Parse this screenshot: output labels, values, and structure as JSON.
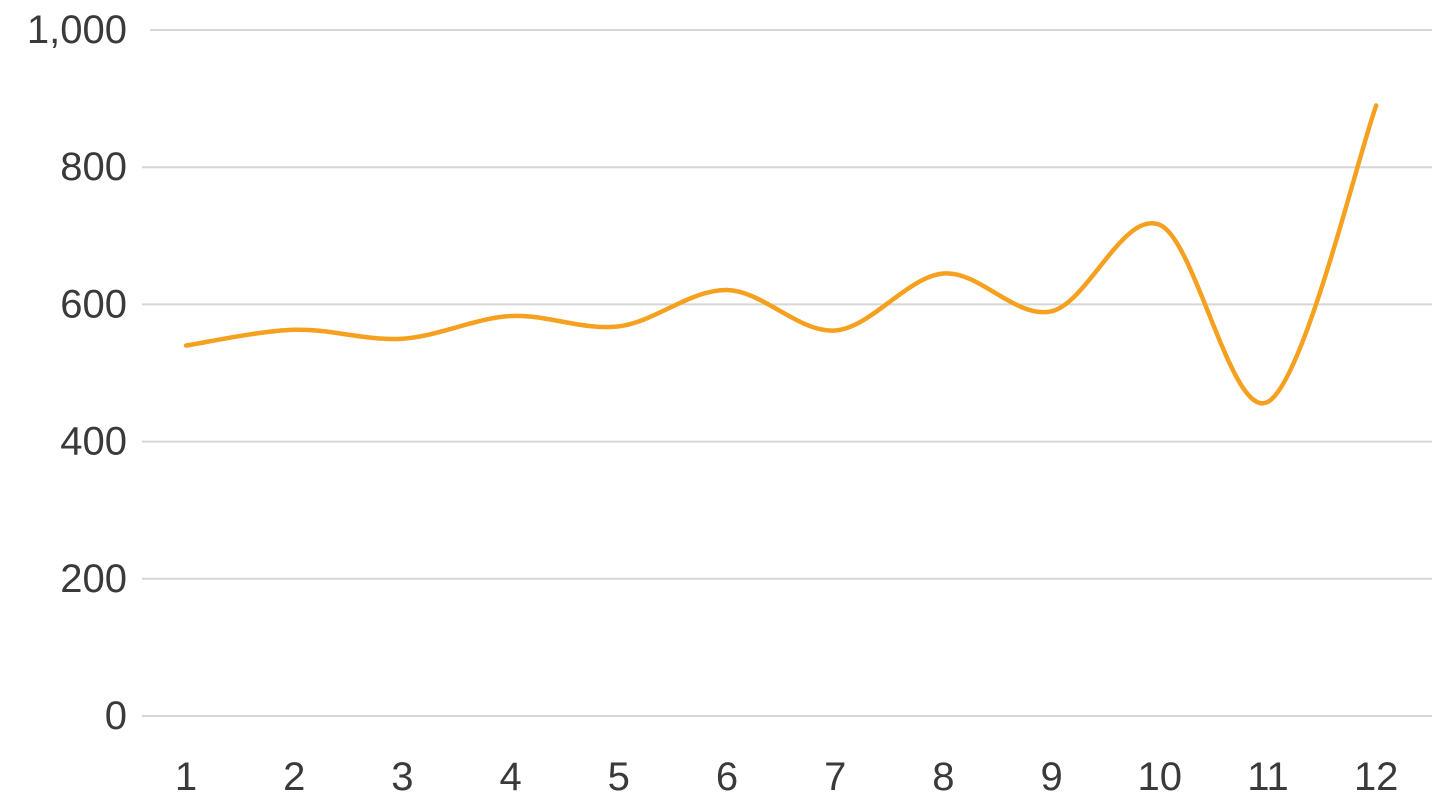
{
  "chart_data": {
    "type": "line",
    "title": "",
    "xlabel": "",
    "ylabel": "",
    "x": [
      1,
      2,
      3,
      4,
      5,
      6,
      7,
      8,
      9,
      10,
      11,
      12
    ],
    "series": [
      {
        "values": [
          540,
          563,
          550,
          583,
          568,
          621,
          562,
          645,
          590,
          716,
          458,
          890
        ],
        "color": "#f5a01e",
        "smooth": true
      }
    ],
    "ylim": [
      0,
      1000
    ],
    "yticks": [
      0,
      200,
      400,
      600,
      800,
      1000
    ],
    "ytick_labels": [
      "0",
      "200",
      "400",
      "600",
      "800",
      "1,000"
    ],
    "xtick_labels": [
      "1",
      "2",
      "3",
      "4",
      "5",
      "6",
      "7",
      "8",
      "9",
      "10",
      "11",
      "12"
    ],
    "grid": true,
    "legend": "none"
  }
}
